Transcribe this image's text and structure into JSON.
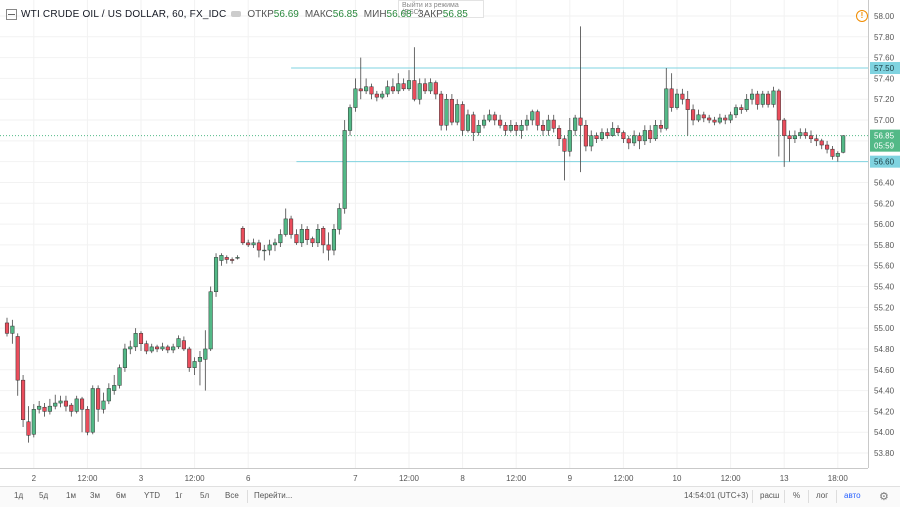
{
  "legend": {
    "symbol": "WTI CRUDE OIL / US DOLLAR, 60, FX_IDC",
    "open_label": "ОТКР",
    "open_value": "56.69",
    "high_label": "МАКС",
    "high_value": "56.85",
    "low_label": "МИН",
    "low_value": "56.68",
    "close_label": "ЗАКР",
    "close_value": "56.85"
  },
  "tooltip": {
    "line1": "Выйти из режима",
    "line2": "(ESC)"
  },
  "warning_glyph": "!",
  "toolbar": {
    "ranges": [
      "1д",
      "5д",
      "1м",
      "3м",
      "6м",
      "YTD",
      "1г",
      "5л",
      "Все"
    ],
    "goto": "Перейти...",
    "clock": "14:54:01 (UTC+3)",
    "session": "расш",
    "percent": "%",
    "log": "лог",
    "auto": "авто",
    "gear": "⚙"
  },
  "colors": {
    "up": "#53b987",
    "down": "#eb4d5c",
    "level": "#7fd3e0",
    "price": "#53b987"
  },
  "chart_data": {
    "type": "candlestick",
    "title": "WTI CRUDE OIL / US DOLLAR, 60, FX_IDC",
    "interval": "60",
    "y_ticks": [
      "58.00",
      "57.80",
      "57.60",
      "57.40",
      "57.20",
      "57.00",
      "56.80",
      "56.60",
      "56.40",
      "56.20",
      "56.00",
      "55.80",
      "55.60",
      "55.40",
      "55.20",
      "55.00",
      "54.80",
      "54.60",
      "54.40",
      "54.20",
      "54.00",
      "53.80"
    ],
    "ylim": [
      53.7,
      58.1
    ],
    "x_ticks": [
      {
        "label": "2",
        "bar": 5
      },
      {
        "label": "12:00",
        "bar": 15
      },
      {
        "label": "3",
        "bar": 25
      },
      {
        "label": "12:00",
        "bar": 35
      },
      {
        "label": "6",
        "bar": 45
      },
      {
        "label": "7",
        "bar": 65
      },
      {
        "label": "12:00",
        "bar": 75
      },
      {
        "label": "8",
        "bar": 85
      },
      {
        "label": "12:00",
        "bar": 95
      },
      {
        "label": "9",
        "bar": 105
      },
      {
        "label": "12:00",
        "bar": 115
      },
      {
        "label": "10",
        "bar": 125
      },
      {
        "label": "12:00",
        "bar": 135
      },
      {
        "label": "13",
        "bar": 145
      },
      {
        "label": "18:00",
        "bar": 155
      }
    ],
    "levels": [
      {
        "value": 57.5,
        "label": "57.50",
        "from_bar": 53
      },
      {
        "value": 56.6,
        "label": "56.60",
        "from_bar": 54
      }
    ],
    "last_price": {
      "value": 56.85,
      "label": "56.85",
      "countdown": "05:59"
    },
    "candles": [
      [
        55.05,
        54.95,
        55.1,
        54.92
      ],
      [
        54.95,
        55.02,
        55.08,
        54.85
      ],
      [
        54.92,
        54.5,
        54.95,
        54.35
      ],
      [
        54.5,
        54.12,
        54.55,
        54.05
      ],
      [
        54.1,
        53.97,
        54.25,
        53.9
      ],
      [
        53.98,
        54.22,
        54.27,
        53.95
      ],
      [
        54.22,
        54.25,
        54.3,
        54.18
      ],
      [
        54.24,
        54.2,
        54.28,
        54.15
      ],
      [
        54.2,
        54.25,
        54.32,
        54.17
      ],
      [
        54.25,
        54.28,
        54.36,
        54.22
      ],
      [
        54.28,
        54.3,
        54.35,
        54.24
      ],
      [
        54.3,
        54.25,
        54.35,
        54.2
      ],
      [
        54.26,
        54.2,
        54.28,
        54.15
      ],
      [
        54.2,
        54.32,
        54.35,
        54.18
      ],
      [
        54.32,
        54.22,
        54.34,
        54.0
      ],
      [
        54.22,
        54.0,
        54.25,
        53.97
      ],
      [
        54.0,
        54.42,
        54.45,
        53.98
      ],
      [
        54.42,
        54.22,
        54.45,
        54.1
      ],
      [
        54.22,
        54.3,
        54.38,
        54.18
      ],
      [
        54.3,
        54.42,
        54.47,
        54.27
      ],
      [
        54.4,
        54.45,
        54.55,
        54.36
      ],
      [
        54.45,
        54.62,
        54.65,
        54.42
      ],
      [
        54.62,
        54.8,
        54.85,
        54.58
      ],
      [
        54.8,
        54.82,
        54.88,
        54.75
      ],
      [
        54.82,
        54.95,
        55.0,
        54.78
      ],
      [
        54.95,
        54.85,
        54.97,
        54.78
      ],
      [
        54.85,
        54.78,
        54.88,
        54.75
      ],
      [
        54.78,
        54.82,
        54.85,
        54.76
      ],
      [
        54.82,
        54.8,
        54.84,
        54.77
      ],
      [
        54.8,
        54.82,
        54.86,
        54.78
      ],
      [
        54.82,
        54.79,
        54.84,
        54.76
      ],
      [
        54.79,
        54.82,
        54.85,
        54.76
      ],
      [
        54.82,
        54.9,
        54.93,
        54.8
      ],
      [
        54.88,
        54.8,
        54.92,
        54.78
      ],
      [
        54.8,
        54.62,
        54.82,
        54.58
      ],
      [
        54.62,
        54.68,
        54.72,
        54.55
      ],
      [
        54.68,
        54.72,
        54.78,
        54.45
      ],
      [
        54.7,
        54.8,
        54.98,
        54.4
      ],
      [
        54.8,
        55.35,
        55.4,
        54.78
      ],
      [
        55.35,
        55.68,
        55.72,
        55.3
      ],
      [
        55.65,
        55.7,
        55.72,
        55.6
      ],
      [
        55.68,
        55.66,
        55.7,
        55.62
      ],
      [
        55.66,
        55.65,
        55.68,
        55.62
      ],
      [
        55.68,
        55.68,
        55.7,
        55.66
      ],
      [
        55.96,
        55.82,
        55.98,
        55.8
      ],
      [
        55.82,
        55.8,
        55.85,
        55.78
      ],
      [
        55.8,
        55.82,
        55.86,
        55.77
      ],
      [
        55.82,
        55.75,
        55.85,
        55.68
      ],
      [
        55.75,
        55.75,
        55.8,
        55.65
      ],
      [
        55.75,
        55.8,
        55.85,
        55.7
      ],
      [
        55.8,
        55.82,
        55.86,
        55.74
      ],
      [
        55.82,
        55.9,
        55.95,
        55.78
      ],
      [
        55.9,
        56.05,
        56.15,
        55.88
      ],
      [
        56.05,
        55.9,
        56.08,
        55.86
      ],
      [
        55.9,
        55.82,
        55.95,
        55.8
      ],
      [
        55.82,
        55.95,
        56.0,
        55.78
      ],
      [
        55.95,
        55.85,
        55.98,
        55.8
      ],
      [
        55.86,
        55.82,
        55.88,
        55.78
      ],
      [
        55.82,
        55.95,
        56.0,
        55.78
      ],
      [
        55.96,
        55.8,
        55.98,
        55.72
      ],
      [
        55.8,
        55.75,
        55.92,
        55.65
      ],
      [
        55.75,
        55.95,
        56.0,
        55.7
      ],
      [
        55.95,
        56.15,
        56.2,
        55.9
      ],
      [
        56.15,
        56.9,
        57.0,
        56.1
      ],
      [
        56.9,
        57.12,
        57.15,
        56.85
      ],
      [
        57.12,
        57.3,
        57.4,
        57.08
      ],
      [
        57.3,
        57.28,
        57.6,
        57.2
      ],
      [
        57.28,
        57.32,
        57.4,
        57.25
      ],
      [
        57.32,
        57.25,
        57.35,
        57.2
      ],
      [
        57.25,
        57.22,
        57.28,
        57.18
      ],
      [
        57.22,
        57.25,
        57.28,
        57.2
      ],
      [
        57.25,
        57.32,
        57.38,
        57.22
      ],
      [
        57.32,
        57.28,
        57.4,
        57.25
      ],
      [
        57.28,
        57.35,
        57.45,
        57.25
      ],
      [
        57.35,
        57.3,
        57.4,
        57.28
      ],
      [
        57.3,
        57.38,
        57.48,
        57.28
      ],
      [
        57.38,
        57.2,
        57.7,
        57.18
      ],
      [
        57.2,
        57.35,
        57.4,
        57.15
      ],
      [
        57.35,
        57.28,
        57.4,
        57.25
      ],
      [
        57.28,
        57.36,
        57.4,
        57.25
      ],
      [
        57.36,
        57.25,
        57.38,
        57.2
      ],
      [
        57.25,
        56.95,
        57.28,
        56.9
      ],
      [
        56.95,
        57.2,
        57.25,
        56.9
      ],
      [
        57.2,
        56.98,
        57.25,
        56.95
      ],
      [
        56.98,
        57.15,
        57.2,
        56.95
      ],
      [
        57.15,
        56.9,
        57.18,
        56.85
      ],
      [
        56.9,
        57.05,
        57.1,
        56.88
      ],
      [
        57.05,
        56.88,
        57.08,
        56.8
      ],
      [
        56.88,
        56.95,
        57.0,
        56.85
      ],
      [
        56.95,
        57.0,
        57.05,
        56.92
      ],
      [
        57.0,
        57.05,
        57.1,
        56.98
      ],
      [
        57.05,
        57.0,
        57.08,
        56.95
      ],
      [
        57.0,
        56.95,
        57.05,
        56.92
      ],
      [
        56.95,
        56.9,
        56.98,
        56.85
      ],
      [
        56.9,
        56.95,
        57.0,
        56.88
      ],
      [
        56.95,
        56.9,
        56.98,
        56.85
      ],
      [
        56.9,
        56.95,
        57.0,
        56.82
      ],
      [
        56.95,
        57.0,
        57.05,
        56.9
      ],
      [
        57.0,
        57.08,
        57.1,
        56.95
      ],
      [
        57.08,
        56.95,
        57.1,
        56.9
      ],
      [
        56.95,
        56.9,
        57.0,
        56.85
      ],
      [
        56.9,
        57.0,
        57.05,
        56.85
      ],
      [
        57.0,
        56.92,
        57.05,
        56.88
      ],
      [
        56.92,
        56.82,
        56.95,
        56.75
      ],
      [
        56.82,
        56.7,
        56.85,
        56.42
      ],
      [
        56.7,
        56.9,
        57.02,
        56.65
      ],
      [
        56.9,
        57.02,
        57.05,
        56.85
      ],
      [
        57.02,
        56.95,
        57.9,
        56.5
      ],
      [
        56.95,
        56.75,
        57.0,
        56.7
      ],
      [
        56.75,
        56.85,
        56.9,
        56.7
      ],
      [
        56.85,
        56.82,
        56.88,
        56.78
      ],
      [
        56.82,
        56.88,
        56.92,
        56.8
      ],
      [
        56.88,
        56.85,
        56.92,
        56.82
      ],
      [
        56.85,
        56.92,
        56.98,
        56.84
      ],
      [
        56.92,
        56.88,
        56.95,
        56.85
      ],
      [
        56.88,
        56.82,
        56.9,
        56.78
      ],
      [
        56.82,
        56.78,
        56.85,
        56.72
      ],
      [
        56.78,
        56.85,
        56.9,
        56.75
      ],
      [
        56.85,
        56.8,
        56.88,
        56.72
      ],
      [
        56.8,
        56.9,
        56.95,
        56.76
      ],
      [
        56.9,
        56.82,
        56.95,
        56.78
      ],
      [
        56.82,
        56.95,
        57.0,
        56.8
      ],
      [
        56.95,
        56.92,
        57.0,
        56.88
      ],
      [
        56.92,
        57.3,
        57.5,
        56.9
      ],
      [
        57.3,
        57.12,
        57.45,
        57.08
      ],
      [
        57.12,
        57.25,
        57.3,
        57.1
      ],
      [
        57.25,
        57.2,
        57.3,
        57.15
      ],
      [
        57.2,
        57.1,
        57.28,
        56.85
      ],
      [
        57.1,
        57.0,
        57.15,
        56.95
      ],
      [
        57.0,
        57.05,
        57.1,
        56.98
      ],
      [
        57.05,
        57.02,
        57.08,
        56.98
      ],
      [
        57.02,
        57.0,
        57.05,
        56.97
      ],
      [
        57.0,
        56.98,
        57.03,
        56.95
      ],
      [
        56.98,
        57.02,
        57.06,
        56.96
      ],
      [
        57.02,
        57.0,
        57.05,
        56.96
      ],
      [
        57.0,
        57.05,
        57.08,
        56.97
      ],
      [
        57.05,
        57.12,
        57.15,
        57.02
      ],
      [
        57.12,
        57.1,
        57.15,
        57.06
      ],
      [
        57.1,
        57.2,
        57.25,
        57.08
      ],
      [
        57.2,
        57.25,
        57.3,
        57.15
      ],
      [
        57.25,
        57.15,
        57.28,
        57.1
      ],
      [
        57.15,
        57.25,
        57.28,
        57.12
      ],
      [
        57.25,
        57.15,
        57.28,
        57.12
      ],
      [
        57.15,
        57.28,
        57.32,
        57.12
      ],
      [
        57.28,
        57.0,
        57.3,
        56.65
      ],
      [
        57.0,
        56.85,
        57.02,
        56.55
      ],
      [
        56.85,
        56.82,
        56.9,
        56.6
      ],
      [
        56.82,
        56.85,
        56.9,
        56.78
      ],
      [
        56.85,
        56.88,
        56.92,
        56.82
      ],
      [
        56.88,
        56.85,
        56.92,
        56.82
      ],
      [
        56.85,
        56.82,
        56.9,
        56.78
      ],
      [
        56.82,
        56.8,
        56.86,
        56.75
      ],
      [
        56.8,
        56.76,
        56.82,
        56.72
      ],
      [
        56.76,
        56.72,
        56.8,
        56.68
      ],
      [
        56.72,
        56.65,
        56.75,
        56.62
      ],
      [
        56.65,
        56.68,
        56.7,
        56.6
      ],
      [
        56.69,
        56.85,
        56.85,
        56.68
      ]
    ]
  }
}
